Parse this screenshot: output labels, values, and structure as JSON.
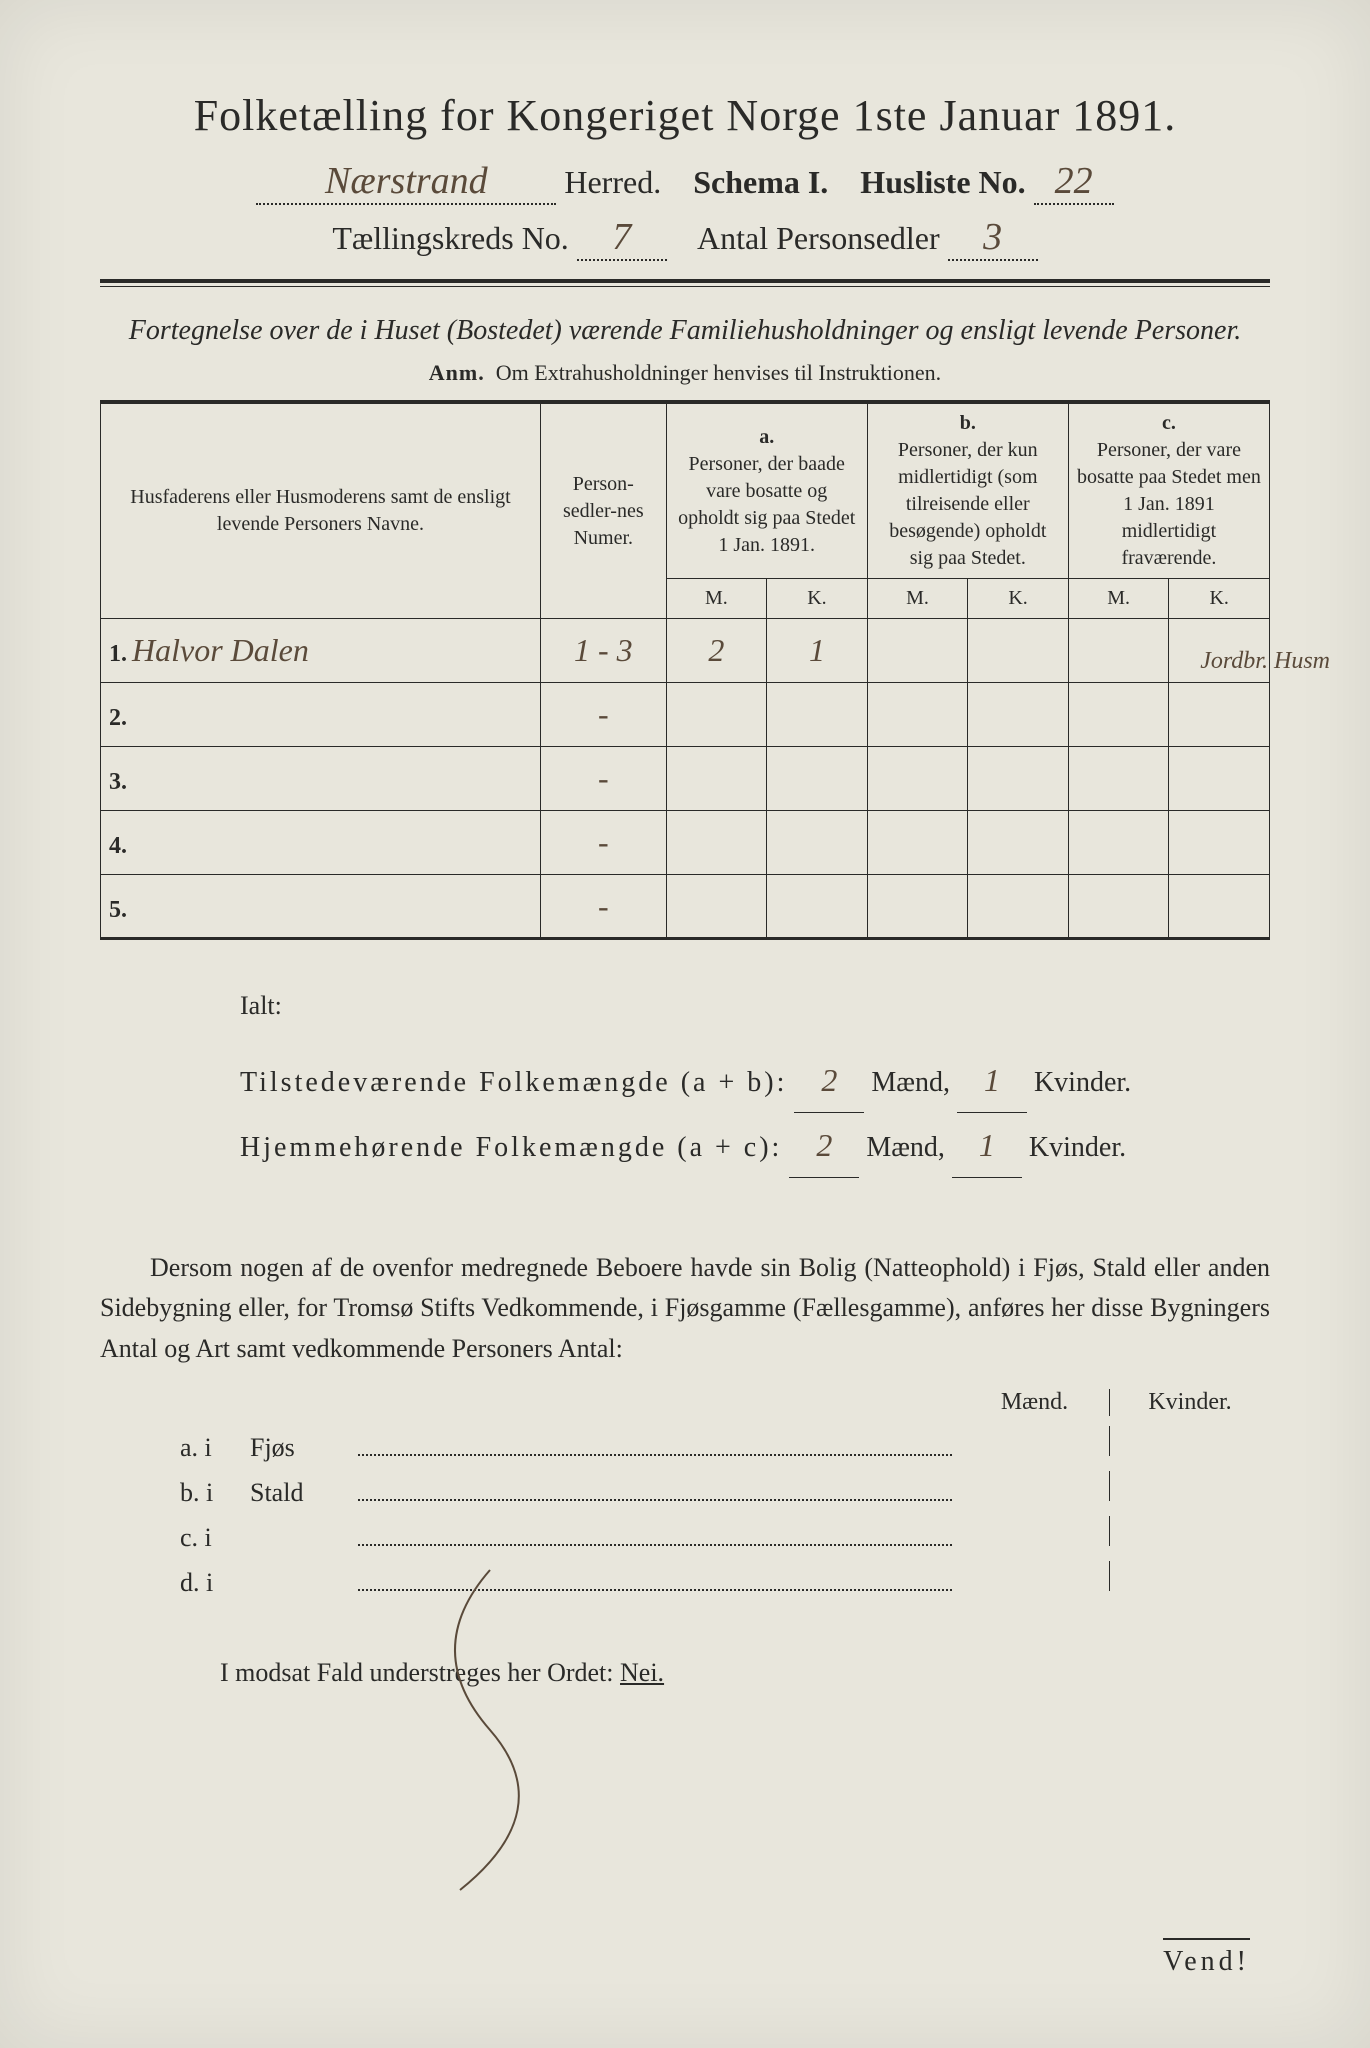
{
  "colors": {
    "paper": "#e8e6dc",
    "ink": "#2a2a28",
    "handwriting": "#5a4a3a",
    "background": "#1a1a1a"
  },
  "title": "Folketælling for Kongeriget Norge 1ste Januar 1891.",
  "header": {
    "herred_hand": "Nærstrand",
    "herred_label": "Herred.",
    "schema_label": "Schema I.",
    "husliste_label": "Husliste No.",
    "husliste_hand": "22",
    "kreds_label": "Tællingskreds No.",
    "kreds_hand": "7",
    "antal_label": "Antal Personsedler",
    "antal_hand": "3"
  },
  "subtitle": "Fortegnelse over de i Huset (Bostedet) værende Familiehusholdninger og ensligt levende Personer.",
  "anm_label": "Anm.",
  "anm_text": "Om Extrahusholdninger henvises til Instruktionen.",
  "table": {
    "head_name": "Husfaderens eller Husmoderens samt de ensligt levende Personers Navne.",
    "head_num": "Person-sedler-nes Numer.",
    "head_a_label": "a.",
    "head_a": "Personer, der baade vare bosatte og opholdt sig paa Stedet 1 Jan. 1891.",
    "head_b_label": "b.",
    "head_b": "Personer, der kun midlertidigt (som tilreisende eller besøgende) opholdt sig paa Stedet.",
    "head_c_label": "c.",
    "head_c": "Personer, der vare bosatte paa Stedet men 1 Jan. 1891 midlertidigt fraværende.",
    "mk_m": "M.",
    "mk_k": "K.",
    "rows": [
      {
        "n": "1.",
        "name": "Halvor Dalen",
        "num": "1 - 3",
        "a_m": "2",
        "a_k": "1",
        "b_m": "",
        "b_k": "",
        "c_m": "",
        "c_k": ""
      },
      {
        "n": "2.",
        "name": "",
        "num": "-",
        "a_m": "",
        "a_k": "",
        "b_m": "",
        "b_k": "",
        "c_m": "",
        "c_k": ""
      },
      {
        "n": "3.",
        "name": "",
        "num": "-",
        "a_m": "",
        "a_k": "",
        "b_m": "",
        "b_k": "",
        "c_m": "",
        "c_k": ""
      },
      {
        "n": "4.",
        "name": "",
        "num": "-",
        "a_m": "",
        "a_k": "",
        "b_m": "",
        "b_k": "",
        "c_m": "",
        "c_k": ""
      },
      {
        "n": "5.",
        "name": "",
        "num": "-",
        "a_m": "",
        "a_k": "",
        "b_m": "",
        "b_k": "",
        "c_m": "",
        "c_k": ""
      }
    ],
    "margin_note": "Jordbr. Husm"
  },
  "totals": {
    "ialt": "Ialt:",
    "line1_label": "Tilstedeværende Folkemængde (a + b):",
    "line1_m": "2",
    "line1_mlabel": "Mænd,",
    "line1_k": "1",
    "line1_klabel": "Kvinder.",
    "line2_label": "Hjemmehørende Folkemængde (a + c):",
    "line2_m": "2",
    "line2_mlabel": "Mænd,",
    "line2_k": "1",
    "line2_klabel": "Kvinder."
  },
  "paragraph": "Dersom nogen af de ovenfor medregnede Beboere havde sin Bolig (Natteophold) i Fjøs, Stald eller anden Sidebygning eller, for Tromsø Stifts Vedkommende, i Fjøsgamme (Fællesgamme), anføres her disse Bygningers Antal og Art samt vedkommende Personers Antal:",
  "mk_header": {
    "m": "Mænd.",
    "k": "Kvinder."
  },
  "list": [
    {
      "key": "a. i",
      "label": "Fjøs"
    },
    {
      "key": "b. i",
      "label": "Stald"
    },
    {
      "key": "c. i",
      "label": ""
    },
    {
      "key": "d. i",
      "label": ""
    }
  ],
  "footline_pre": "I modsat Fald understreges her Ordet: ",
  "footline_nei": "Nei.",
  "vend": "Vend!"
}
